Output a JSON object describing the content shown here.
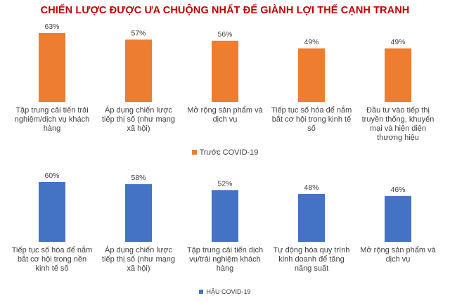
{
  "title": "CHIẾN LƯỢC ĐƯỢC ƯA CHUỘNG NHẤT ĐỂ GIÀNH LỢI THẾ CẠNH TRANH",
  "chart_data": [
    {
      "type": "bar",
      "categories": [
        "Tập trung cải tiến trải nghiệm/dịch vụ khách hàng",
        "Áp dụng chiến lược tiếp thị số (như mạng xã hội)",
        "Mở rộng sản phẩm và dịch vụ",
        "Tiếp tục số hóa để nắm bắt cơ hội trong kinh tế số",
        "Đầu tư vào tiếp thị truyền thống, khuyến mại và hiện diện thương hiệu"
      ],
      "series": [
        {
          "name": "Trước COVID-19",
          "values": [
            63,
            57,
            56,
            49,
            49
          ]
        }
      ],
      "data_labels": [
        "63%",
        "57%",
        "56%",
        "49%",
        "49%"
      ],
      "color": "#ed7d31",
      "ylim": [
        0,
        70
      ],
      "legend": "bottom"
    },
    {
      "type": "bar",
      "categories": [
        "Tiếp tục số hóa để nắm bắt cơ hội trong nền kinh tế số",
        "Áp dụng chiến lược tiếp thị số (như mạng xã hội)",
        "Tập trung cải tiến dịch vụ/trải nghiệm khách hàng",
        "Tự động hóa quy trình kinh doanh để tăng năng suất",
        "Mở rộng sản phẩm và dịch vụ"
      ],
      "series": [
        {
          "name": "HẬU COVID-19",
          "values": [
            60,
            58,
            52,
            48,
            46
          ]
        }
      ],
      "data_labels": [
        "60%",
        "58%",
        "52%",
        "48%",
        "46%"
      ],
      "color": "#4472c4",
      "ylim": [
        0,
        70
      ],
      "legend": "bottom"
    }
  ]
}
